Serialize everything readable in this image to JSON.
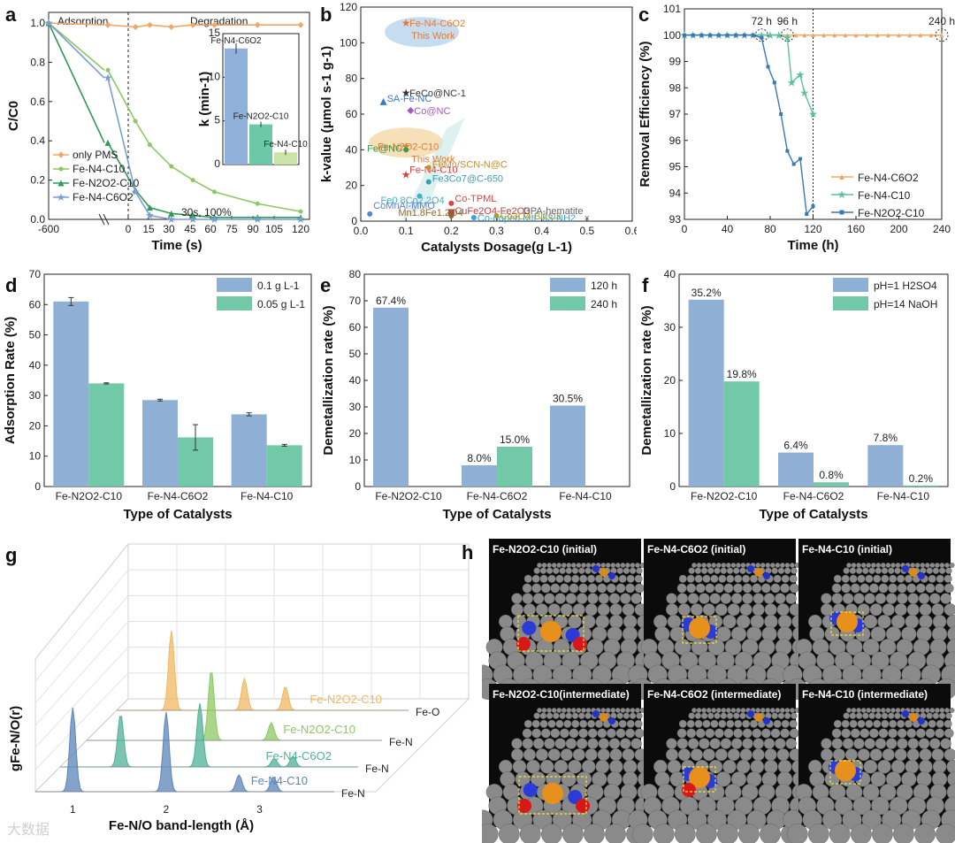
{
  "panel_letters": {
    "a": "a",
    "b": "b",
    "c": "c",
    "d": "d",
    "e": "e",
    "f": "f",
    "g": "g",
    "h": "h"
  },
  "chart_data": [
    {
      "panel": "a",
      "type": "line",
      "xlabel": "Time (s)",
      "ylabel": "C/C0",
      "regions": [
        "Adsorption",
        "Degradation"
      ],
      "x_ticks": [
        "-600",
        "0",
        "15",
        "30",
        "45",
        "60",
        "75",
        "90",
        "105",
        "120"
      ],
      "x": [
        -600,
        0,
        5,
        15,
        30,
        45,
        60,
        90,
        120
      ],
      "ylim": [
        0,
        1.0
      ],
      "y_ticks": [
        "0.0",
        "0.2",
        "0.4",
        "0.6",
        "0.8",
        "1.0"
      ],
      "annotation": "30s, 100%",
      "series": [
        {
          "name": "only PMS",
          "color": "#f0a868",
          "values": [
            1.0,
            0.99,
            0.98,
            0.99,
            0.98,
            0.99,
            0.99,
            0.99,
            0.99
          ]
        },
        {
          "name": "Fe-N4-C10",
          "color": "#8cc862",
          "values": [
            1.0,
            0.76,
            0.5,
            0.38,
            0.27,
            0.2,
            0.14,
            0.08,
            0.04
          ]
        },
        {
          "name": "Fe-N2O2-C10",
          "color": "#2e9a56",
          "values": [
            1.0,
            0.39,
            0.15,
            0.06,
            0.03,
            0.02,
            0.01,
            0.01,
            0.01
          ]
        },
        {
          "name": "Fe-N4-C6O2",
          "color": "#7a9ed4",
          "values": [
            1.0,
            0.72,
            0.14,
            0.02,
            0.0,
            0.0,
            0.0,
            0.0,
            0.0
          ]
        }
      ],
      "inset": {
        "type": "bar",
        "ylabel": "k (min-1)",
        "ylim": [
          0,
          15
        ],
        "y_ticks": [
          "0",
          "5",
          "10",
          "15"
        ],
        "categories": [
          "Fe-N4-C6O2",
          "Fe-N2O2-C10",
          "Fe-N4-C10"
        ],
        "values": [
          13.3,
          4.6,
          1.4
        ],
        "errors": [
          0.6,
          0.3,
          0.3
        ],
        "colors": [
          "#8fb0d8",
          "#6cc9a8",
          "#c9e4a6"
        ]
      }
    },
    {
      "panel": "b",
      "type": "scatter",
      "xlabel": "Catalysts Dosage(g L-1)",
      "ylabel": "k-value (μmol s-1 g-1)",
      "xlim": [
        0,
        0.6
      ],
      "ylim": [
        0,
        120
      ],
      "x_ticks": [
        "0.0",
        "0.1",
        "0.2",
        "0.3",
        "0.4",
        "0.5",
        "0.6"
      ],
      "y_ticks": [
        "0",
        "20",
        "40",
        "60",
        "80",
        "100",
        "120"
      ],
      "this_work_label": "This Work",
      "points": [
        {
          "label": "Fe-N4-C6O2",
          "x": 0.1,
          "y": 111,
          "color": "#e87830",
          "marker": "star",
          "highlight": true
        },
        {
          "label": "FeCo@NC-1",
          "x": 0.1,
          "y": 72,
          "color": "#333333",
          "marker": "star"
        },
        {
          "label": "SA-Fe-NC",
          "x": 0.05,
          "y": 67,
          "color": "#3a78c8",
          "marker": "triangle"
        },
        {
          "label": "Co@NC",
          "x": 0.11,
          "y": 62,
          "color": "#a855c8",
          "marker": "diamond"
        },
        {
          "label": "Fe-N2O2-C10",
          "x": 0.1,
          "y": 42,
          "color": "#e87830",
          "marker": "star",
          "highlight": true
        },
        {
          "label": "Fe-N4-C10",
          "x": 0.1,
          "y": 26,
          "color": "#d84040",
          "marker": "star"
        },
        {
          "label": "Fe@NC",
          "x": 0.1,
          "y": 40,
          "color": "#30a050",
          "marker": "circle"
        },
        {
          "label": "FeMn/SCN-N@C",
          "x": 0.15,
          "y": 30,
          "color": "#c89030",
          "marker": "circle"
        },
        {
          "label": "Fe3Co7@C-650",
          "x": 0.15,
          "y": 22,
          "color": "#3a9ab0",
          "marker": "circle"
        },
        {
          "label": "Fe0.8Co2.2O4",
          "x": 0.13,
          "y": 14,
          "color": "#45b0c0",
          "marker": "circle"
        },
        {
          "label": "CoMnAl-MMO",
          "x": 0.02,
          "y": 4,
          "color": "#5b7fc8",
          "marker": "circle"
        },
        {
          "label": "Co-TPML",
          "x": 0.2,
          "y": 10,
          "color": "#e04040",
          "marker": "circle"
        },
        {
          "label": "CuFe2O4-Fe2O3",
          "x": 0.2,
          "y": 5,
          "color": "#c04040",
          "marker": "square"
        },
        {
          "label": "Mn1.8Fe1.2O4",
          "x": 0.2,
          "y": 3,
          "color": "#8a6a30",
          "marker": "circle"
        },
        {
          "label": "Co-doped MIL-53-NH2",
          "x": 0.25,
          "y": 2,
          "color": "#3aa0d8",
          "marker": "circle"
        },
        {
          "label": "Co3O4-Bi2O3",
          "x": 0.3,
          "y": 3,
          "color": "#b09a30",
          "marker": "circle"
        },
        {
          "label": "DPA-hematite",
          "x": 0.5,
          "y": 2,
          "color": "#666666",
          "marker": "cross"
        }
      ]
    },
    {
      "panel": "c",
      "type": "line",
      "xlabel": "Time (h)",
      "ylabel": "Removal Efficiency (%)",
      "xlim": [
        0,
        240
      ],
      "ylim": [
        93,
        101
      ],
      "x_ticks": [
        "0",
        "40",
        "80",
        "120",
        "160",
        "200",
        "240"
      ],
      "y_ticks": [
        "93",
        "94",
        "95",
        "96",
        "97",
        "98",
        "99",
        "100",
        "101"
      ],
      "markers": [
        "72 h",
        "96 h",
        "240 h"
      ],
      "series": [
        {
          "name": "Fe-N4-C6O2",
          "color": "#f0a868",
          "x": [
            0,
            8,
            16,
            24,
            32,
            40,
            48,
            56,
            64,
            72,
            80,
            88,
            96,
            104,
            112,
            120,
            130,
            140,
            150,
            160,
            170,
            180,
            190,
            200,
            210,
            220,
            230,
            240
          ],
          "values": [
            100,
            100,
            100,
            100,
            100,
            100,
            100,
            100,
            100,
            100,
            100,
            100,
            100,
            100,
            100,
            100,
            100,
            100,
            100,
            100,
            100,
            100,
            100,
            100,
            100,
            100,
            100,
            100
          ]
        },
        {
          "name": "Fe-N4-C10",
          "color": "#5cc0a0",
          "x": [
            0,
            8,
            16,
            24,
            32,
            40,
            48,
            56,
            64,
            72,
            80,
            88,
            96,
            100,
            108,
            112,
            120
          ],
          "values": [
            100,
            100,
            100,
            100,
            100,
            100,
            100,
            100,
            100,
            100,
            100,
            100,
            99.9,
            98.2,
            98.5,
            97.8,
            97.0
          ]
        },
        {
          "name": "Fe-N2O2-C10",
          "color": "#3a78b8",
          "x": [
            0,
            8,
            16,
            24,
            32,
            40,
            48,
            56,
            64,
            72,
            78,
            84,
            90,
            96,
            102,
            108,
            114,
            120
          ],
          "values": [
            100,
            100,
            100,
            100,
            100,
            100,
            100,
            100,
            100,
            99.9,
            98.8,
            98.2,
            97.0,
            95.6,
            95.1,
            95.3,
            93.2,
            93.5
          ]
        }
      ]
    },
    {
      "panel": "d",
      "type": "bar",
      "xlabel": "Type of Catalysts",
      "ylabel": "Adsorption Rate (%)",
      "ylim": [
        0,
        70
      ],
      "y_ticks": [
        "0",
        "10",
        "20",
        "30",
        "40",
        "50",
        "60",
        "70"
      ],
      "categories": [
        "Fe-N2O2-C10",
        "Fe-N4-C6O2",
        "Fe-N4-C10"
      ],
      "series": [
        {
          "name": "0.1 g L-1",
          "color": "#8fb0d4",
          "values": [
            61.0,
            28.5,
            23.8
          ],
          "errors": [
            1.3,
            0.3,
            0.5
          ]
        },
        {
          "name": "0.05 g L-1",
          "color": "#72c9a8",
          "values": [
            34.0,
            16.2,
            13.6
          ],
          "errors": [
            0.2,
            4.2,
            0.3
          ]
        }
      ]
    },
    {
      "panel": "e",
      "type": "bar",
      "xlabel": "Type of Catalysts",
      "ylabel": "Demetallization rate (%)",
      "ylim": [
        0,
        80
      ],
      "y_ticks": [
        "0",
        "10",
        "20",
        "30",
        "40",
        "50",
        "60",
        "70",
        "80"
      ],
      "categories": [
        "Fe-N2O2-C10",
        "Fe-N4-C6O2",
        "Fe-N4-C10"
      ],
      "series": [
        {
          "name": "120 h",
          "color": "#8fb0d4",
          "values": [
            67.4,
            8.0,
            30.5
          ],
          "labels": [
            "67.4%",
            "8.0%",
            "30.5%"
          ]
        },
        {
          "name": "240 h",
          "color": "#72c9a8",
          "values": [
            null,
            15.0,
            null
          ],
          "labels": [
            "",
            "15.0%",
            ""
          ]
        }
      ]
    },
    {
      "panel": "f",
      "type": "bar",
      "xlabel": "Type of Catalysts",
      "ylabel": "Demetallization rate (%)",
      "ylim": [
        0,
        40
      ],
      "y_ticks": [
        "0",
        "10",
        "20",
        "30",
        "40"
      ],
      "categories": [
        "Fe-N2O2-C10",
        "Fe-N4-C6O2",
        "Fe-N4-C10"
      ],
      "series": [
        {
          "name": "pH=1 H2SO4",
          "color": "#8fb0d4",
          "values": [
            35.2,
            6.4,
            7.8
          ],
          "labels": [
            "35.2%",
            "6.4%",
            "7.8%"
          ]
        },
        {
          "name": "pH=14 NaOH",
          "color": "#72c9a8",
          "values": [
            19.8,
            0.8,
            0.2
          ],
          "labels": [
            "19.8%",
            "0.8%",
            "0.2%"
          ]
        }
      ]
    },
    {
      "panel": "g",
      "type": "area",
      "xlabel": "Fe-N/O band-length (Å)",
      "ylabel": "gFe-N/O(r)",
      "x_ticks": [
        "1",
        "2",
        "3"
      ],
      "series": [
        {
          "name": "Fe-N4-C10",
          "bond": "Fe-N",
          "color": "#5b84b8",
          "peaks": [
            [
              1.0,
              1.0
            ],
            [
              2.0,
              0.95
            ],
            [
              2.78,
              0.2
            ],
            [
              3.15,
              0.18
            ]
          ]
        },
        {
          "name": "Fe-N4-C6O2",
          "bond": "Fe-N",
          "color": "#4fb098",
          "peaks": [
            [
              1.25,
              0.75
            ],
            [
              2.1,
              0.9
            ],
            [
              2.9,
              0.12
            ],
            [
              3.1,
              0.15
            ]
          ]
        },
        {
          "name": "Fe-N2O2-C10",
          "bond": "Fe-N",
          "color": "#8cc862",
          "peaks": [
            [
              1.95,
              1.0
            ],
            [
              2.6,
              0.25
            ]
          ]
        },
        {
          "name": "Fe-N2O2-C10",
          "bond": "Fe-O",
          "color": "#f0b860",
          "peaks": [
            [
              1.2,
              1.0
            ],
            [
              2.0,
              0.4
            ],
            [
              2.45,
              0.3
            ]
          ]
        }
      ]
    }
  ],
  "panel_h": {
    "snapshots": [
      "Fe-N2O2-C10 (initial)",
      "Fe-N4-C6O2 (initial)",
      "Fe-N4-C10 (initial)",
      "Fe-N2O2-C10(intermediate)",
      "Fe-N4-C6O2 (intermediate)",
      "Fe-N4-C10 (intermediate)"
    ]
  },
  "watermark": "大数据"
}
